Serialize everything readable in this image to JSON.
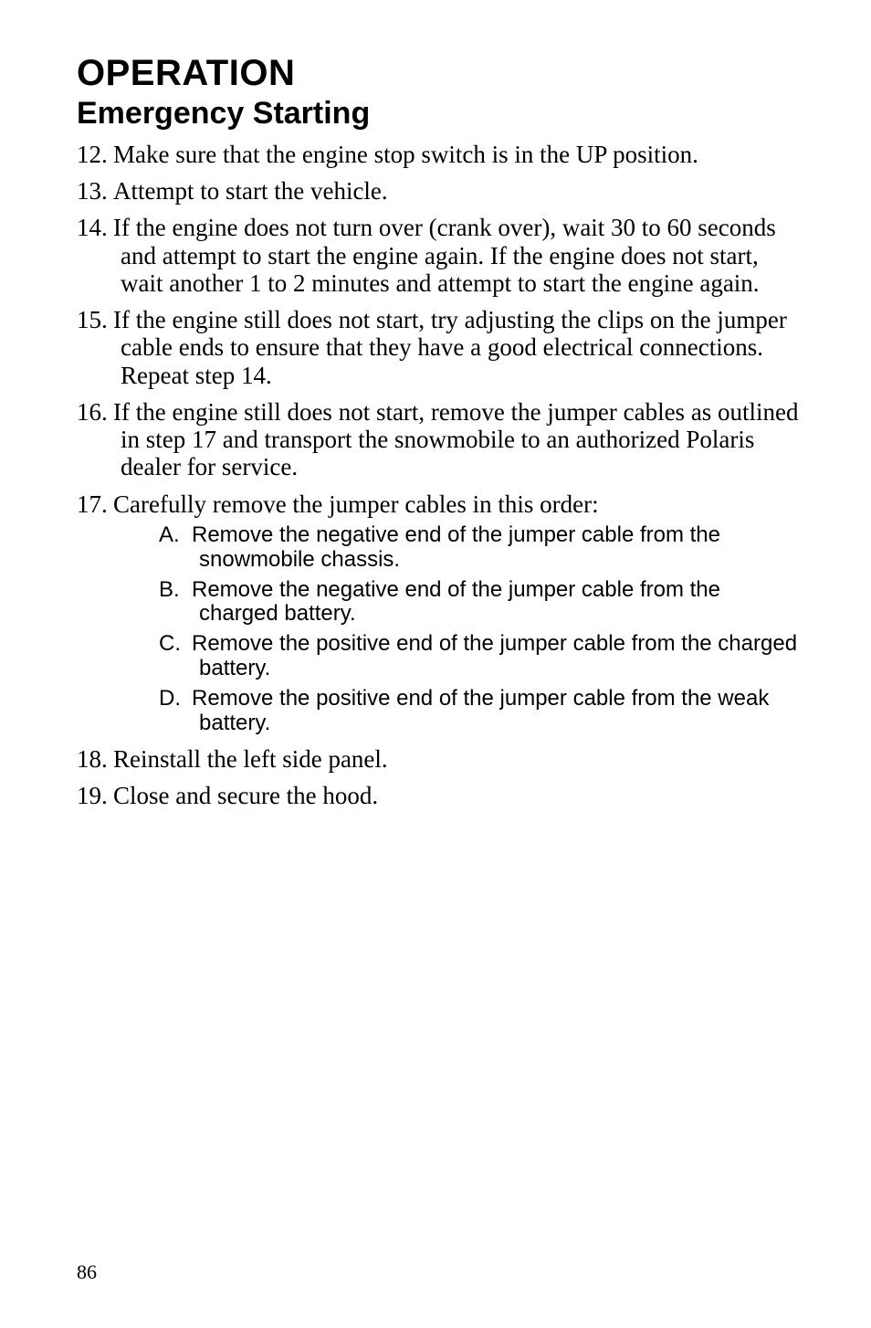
{
  "title": "OPERATION",
  "subtitle": "Emergency Starting",
  "items": [
    {
      "num": "12.",
      "text": "Make sure that the engine stop switch is in the UP position."
    },
    {
      "num": "13.",
      "text": "Attempt to start the vehicle."
    },
    {
      "num": "14.",
      "text": "If the engine does not turn over (crank over), wait 30 to 60 seconds and attempt to start the engine again. If the engine does not start, wait another 1 to 2 minutes and attempt to start the engine again."
    },
    {
      "num": "15.",
      "text": "If the engine still does not start, try adjusting the clips on the jumper cable ends to ensure that they have a good electrical connections. Repeat step 14."
    },
    {
      "num": "16.",
      "text": "If the engine still does not start, remove the jumper cables as outlined in step 17 and transport the snowmobile to an authorized Polaris dealer for service."
    },
    {
      "num": "17.",
      "text": "Carefully remove the jumper cables in this order:",
      "sub": [
        {
          "let": "A.",
          "text": "Remove the negative end of the jumper cable from the snowmobile chassis."
        },
        {
          "let": "B.",
          "text": "Remove the negative end of the jumper cable from the charged battery."
        },
        {
          "let": "C.",
          "text": "Remove the positive end of the jumper cable from the charged battery."
        },
        {
          "let": "D.",
          "text": "Remove the positive end of the jumper cable from the weak battery."
        }
      ]
    },
    {
      "num": "18.",
      "text": "Reinstall the left side panel."
    },
    {
      "num": "19.",
      "text": "Close and secure the hood."
    }
  ],
  "pageNumber": "86"
}
